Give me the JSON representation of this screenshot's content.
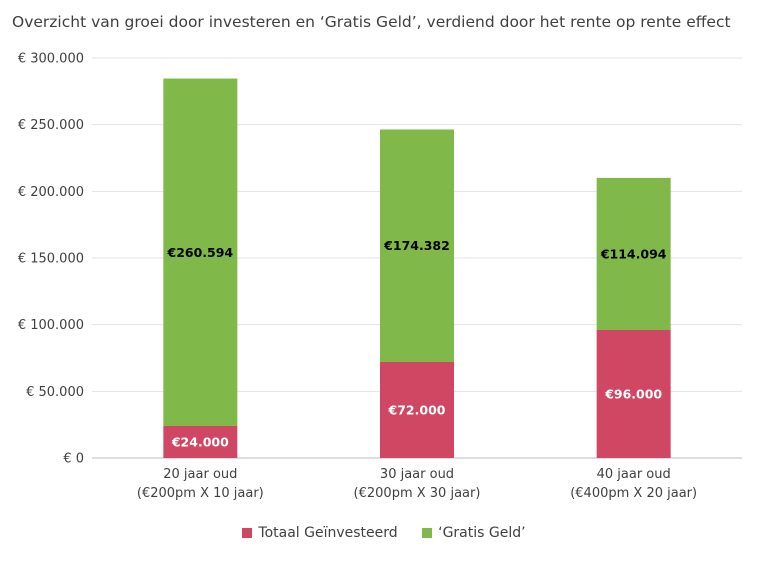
{
  "chart_data": {
    "type": "bar",
    "stacked": true,
    "title": "Overzicht van groei door investeren en ‘Gratis Geld’, verdiend door het rente op rente effect",
    "categories": [
      [
        "20 jaar oud",
        "(€200pm X 10 jaar)"
      ],
      [
        "30 jaar oud",
        "(€200pm X 30 jaar)"
      ],
      [
        "40 jaar oud",
        "(€400pm X 20 jaar)"
      ]
    ],
    "series": [
      {
        "name": "Totaal Geïnvesteerd",
        "color": "#d04763",
        "label_color": "#ffffff",
        "values": [
          24000,
          72000,
          96000
        ],
        "labels": [
          "€24.000",
          "€72.000",
          "€96.000"
        ]
      },
      {
        "name": "‘Gratis Geld’",
        "color": "#80b84a",
        "label_color": "#000000",
        "values": [
          260594,
          174382,
          114094
        ],
        "labels": [
          "€260.594",
          "€174.382",
          "€114.094"
        ]
      }
    ],
    "yticks": [
      0,
      50000,
      100000,
      150000,
      200000,
      250000,
      300000
    ],
    "ytick_labels": [
      "€ 0",
      "€ 50.000",
      "€ 100.000",
      "€ 150.000",
      "€ 200.000",
      "€ 250.000",
      "€ 300.000"
    ],
    "ylim": [
      0,
      300000
    ],
    "grid": true,
    "legend_position": "bottom"
  }
}
